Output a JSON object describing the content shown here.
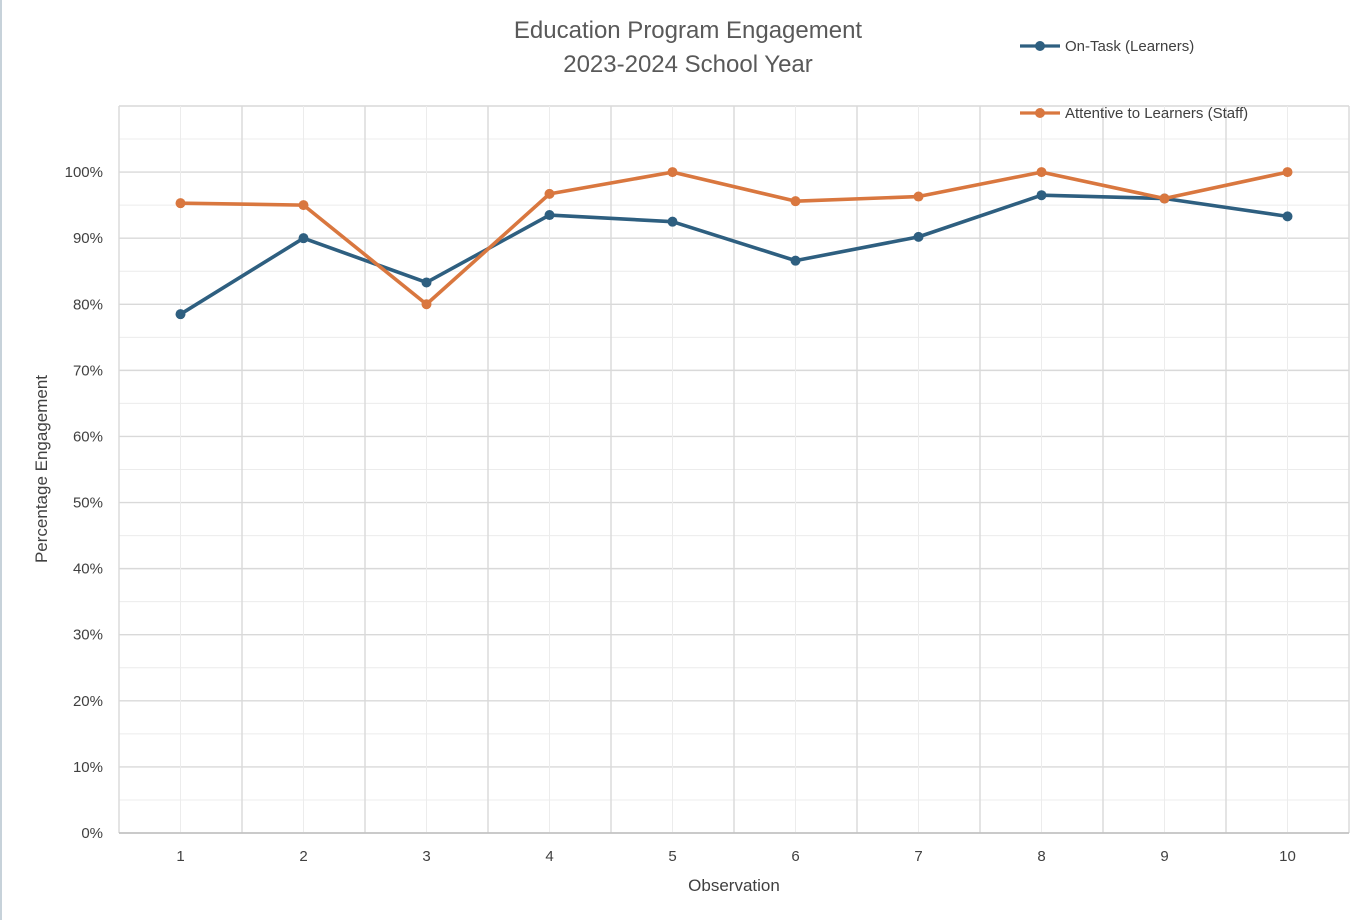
{
  "chart_data": {
    "type": "line",
    "title": "Education Program Engagement",
    "subtitle": "2023-2024 School Year",
    "xlabel": "Observation",
    "ylabel": "Percentage Engagement",
    "categories": [
      "1",
      "2",
      "3",
      "4",
      "5",
      "6",
      "7",
      "8",
      "9",
      "10"
    ],
    "ylim": [
      0,
      1.1
    ],
    "y_ticks": [
      "0%",
      "10%",
      "20%",
      "30%",
      "40%",
      "50%",
      "60%",
      "70%",
      "80%",
      "90%",
      "100%"
    ],
    "grid": true,
    "legend_position": "top-right",
    "series": [
      {
        "name": "On-Task (Learners)",
        "color": "#2e5f80",
        "values": [
          0.785,
          0.9,
          0.833,
          0.935,
          0.925,
          0.866,
          0.902,
          0.965,
          0.96,
          0.933
        ]
      },
      {
        "name": "Attentive to Learners (Staff)",
        "color": "#d9773f",
        "values": [
          0.953,
          0.95,
          0.8,
          0.967,
          1.0,
          0.956,
          0.963,
          1.0,
          0.96,
          1.0
        ]
      }
    ]
  }
}
